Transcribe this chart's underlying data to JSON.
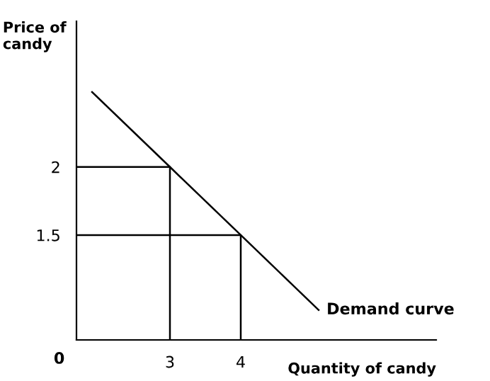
{
  "chart_data": {
    "type": "line",
    "xlabel": "Quantity of candy",
    "ylabel": "Price of\ncandy",
    "xlim": [
      1.68,
      6.76
    ],
    "ylim": [
      0.73,
      3.07
    ],
    "xticks": [
      3,
      4
    ],
    "yticks": [
      1.5,
      2
    ],
    "grid": false,
    "marker": "none",
    "line_style": "solid",
    "series": [
      {
        "x": [
          1.9,
          3,
          4,
          5.1
        ],
        "values": [
          2.55,
          2,
          1.5,
          0.95
        ],
        "color": "#000000"
      },
      {
        "x": [
          1.68,
          3,
          3
        ],
        "values": [
          2,
          2,
          0.73
        ],
        "color": "#000000"
      },
      {
        "x": [
          1.68,
          4,
          4
        ],
        "values": [
          1.5,
          1.5,
          0.73
        ],
        "color": "#000000"
      }
    ],
    "annotations": [
      "0",
      {
        "text": "Demand curve",
        "x": 5.1,
        "y": 0.95
      }
    ]
  }
}
